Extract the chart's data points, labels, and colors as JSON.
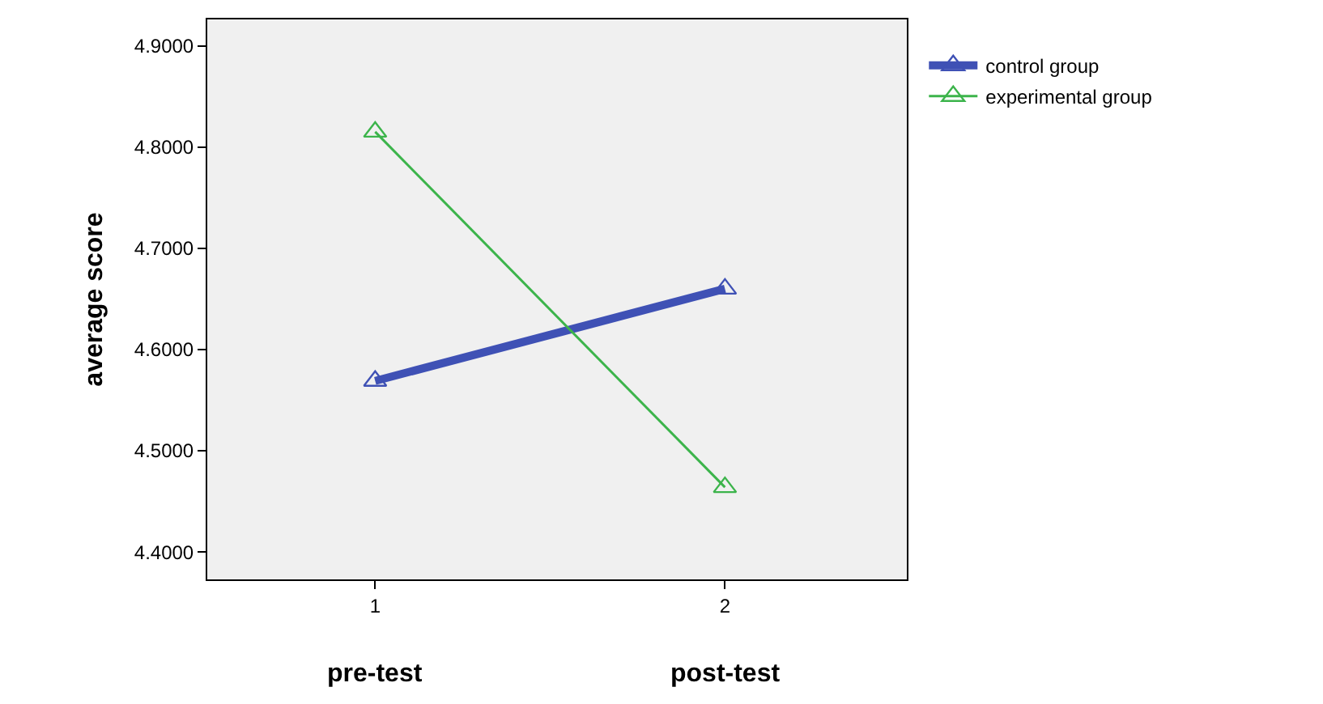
{
  "chart_data": {
    "type": "line",
    "ylabel": "average score",
    "categories": [
      "1",
      "2"
    ],
    "series": [
      {
        "name": "control group",
        "color": "#3f51b5",
        "values": [
          4.569,
          4.66
        ]
      },
      {
        "name": "experimental group",
        "color": "#3cb44b",
        "values": [
          4.815,
          4.464
        ]
      }
    ],
    "ylim": [
      4.373,
      4.926
    ],
    "yticks": [
      {
        "value": 4.4,
        "label": "4.4000"
      },
      {
        "value": 4.5,
        "label": "4.5000"
      },
      {
        "value": 4.6,
        "label": "4.6000"
      },
      {
        "value": 4.7,
        "label": "4.7000"
      },
      {
        "value": 4.8,
        "label": "4.8000"
      },
      {
        "value": 4.9,
        "label": "4.9000"
      }
    ],
    "annotations": [
      "pre-test",
      "post-test"
    ],
    "marker": "triangle",
    "grid": false,
    "legend": "top right"
  }
}
